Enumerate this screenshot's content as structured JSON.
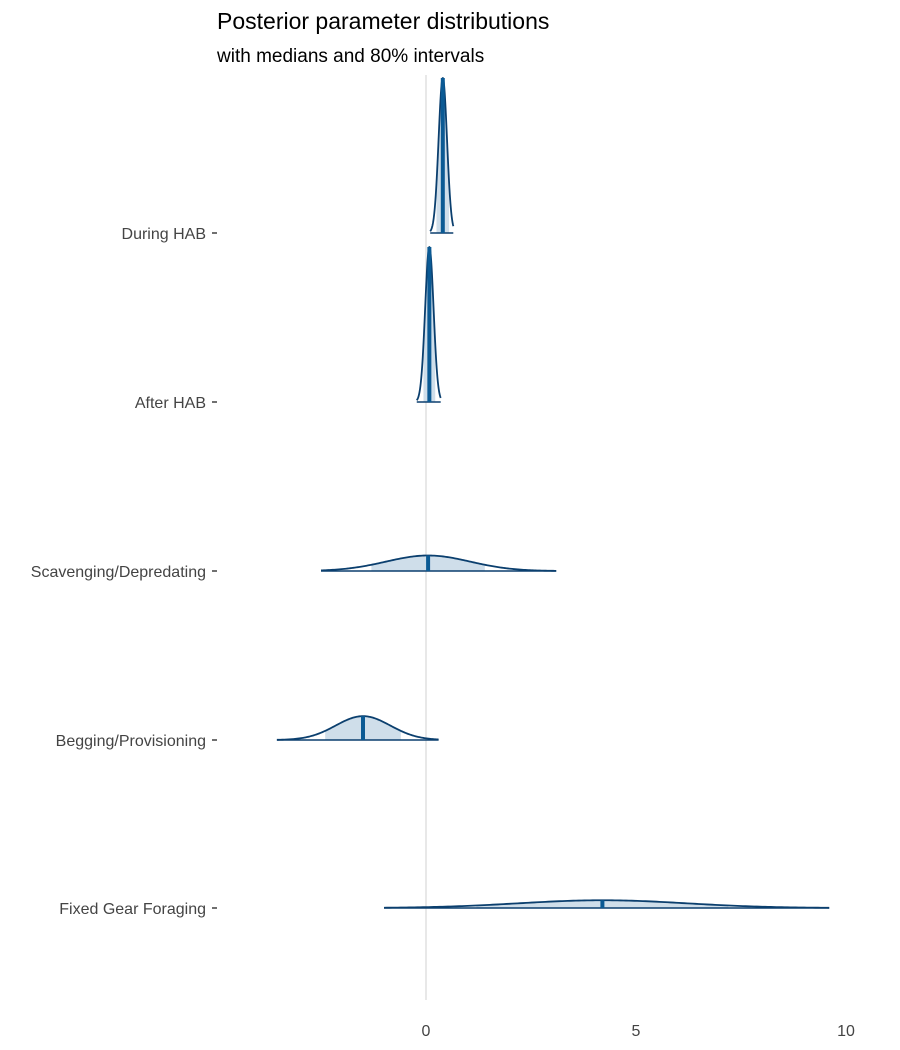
{
  "chart_data": {
    "type": "ridgeline",
    "title": "Posterior parameter distributions",
    "subtitle": "with medians and 80% intervals",
    "xlabel": "",
    "ylabel": "",
    "x_ticks": [
      0,
      5,
      10
    ],
    "xlim": [
      -5.1,
      10.1
    ],
    "grid": "vertical line at 0 only",
    "colors": {
      "outline": "#0b3f6e",
      "fill": "#cfdeea",
      "median": "#0b5a94",
      "zero_line": "#d9d9d9",
      "tick_text": "#444444"
    },
    "series": [
      {
        "name": "During HAB",
        "median": 0.4,
        "interval_80": [
          0.25,
          0.55
        ],
        "min": 0.1,
        "max": 0.65,
        "sd": 0.1
      },
      {
        "name": "After HAB",
        "median": 0.08,
        "interval_80": [
          -0.06,
          0.22
        ],
        "min": -0.22,
        "max": 0.35,
        "sd": 0.1
      },
      {
        "name": "Scavenging/Depredating",
        "median": 0.05,
        "interval_80": [
          -1.3,
          1.4
        ],
        "min": -2.5,
        "max": 3.1,
        "sd": 1.0
      },
      {
        "name": "Begging/Provisioning",
        "median": -1.5,
        "interval_80": [
          -2.4,
          -0.6
        ],
        "min": -3.55,
        "max": 0.3,
        "sd": 0.65
      },
      {
        "name": "Fixed Gear Foraging",
        "median": 4.2,
        "interval_80": [
          1.2,
          7.2
        ],
        "min": -1.0,
        "max": 9.6,
        "sd": 2.0
      }
    ]
  }
}
